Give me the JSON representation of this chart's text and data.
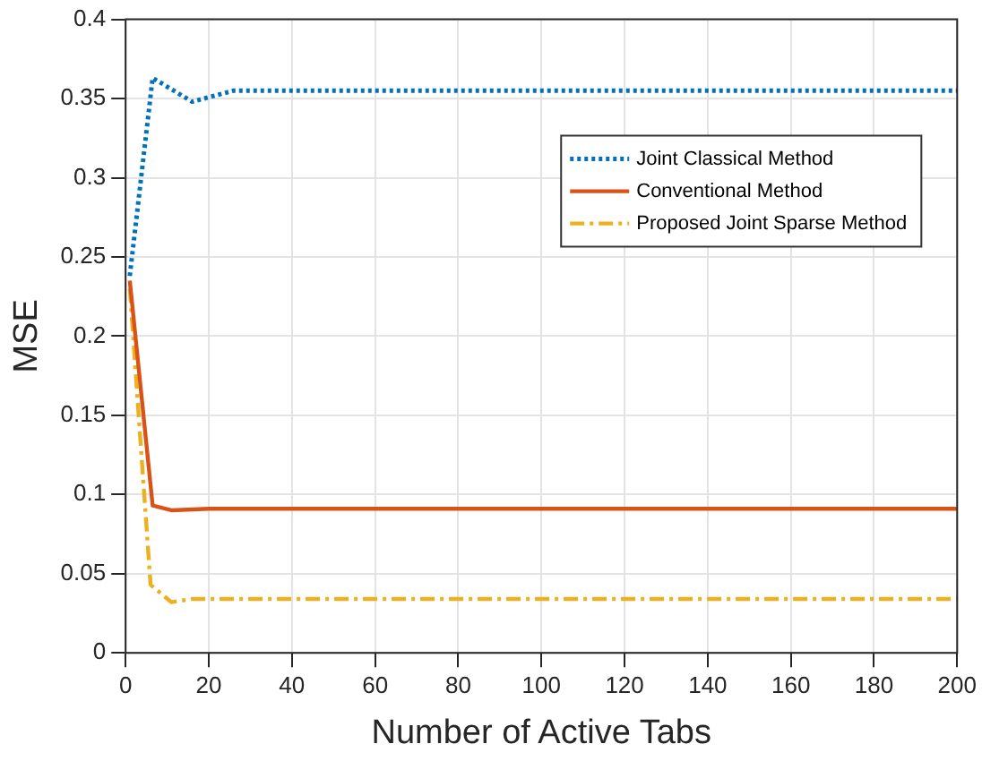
{
  "chart_data": {
    "type": "line",
    "xlabel": "Number of Active Tabs",
    "ylabel": "MSE",
    "xlim": [
      0,
      200
    ],
    "xticks": [
      0,
      20,
      40,
      60,
      80,
      100,
      120,
      140,
      160,
      180,
      200
    ],
    "ylim": [
      0,
      0.4
    ],
    "yticks": [
      0,
      0.05,
      0.1,
      0.15,
      0.2,
      0.25,
      0.3,
      0.35,
      0.4
    ],
    "grid": true,
    "legend": "top right",
    "marker": "none",
    "series": [
      {
        "name": "Joint Classical Method",
        "color": "#0072bd",
        "line_style": "dotted",
        "x": [
          1,
          6.5,
          16,
          26,
          200
        ],
        "values": [
          0.238,
          0.363,
          0.348,
          0.355,
          0.355
        ]
      },
      {
        "name": "Conventional Method",
        "color": "#d95319",
        "line_style": "solid",
        "x": [
          1,
          6.5,
          11,
          20,
          200
        ],
        "values": [
          0.235,
          0.093,
          0.09,
          0.091,
          0.091
        ]
      },
      {
        "name": "Proposed Joint Sparse Method",
        "color": "#edb120",
        "line_style": "dashed",
        "x": [
          1,
          6,
          11,
          16,
          200
        ],
        "values": [
          0.23,
          0.043,
          0.032,
          0.034,
          0.034
        ]
      }
    ]
  }
}
